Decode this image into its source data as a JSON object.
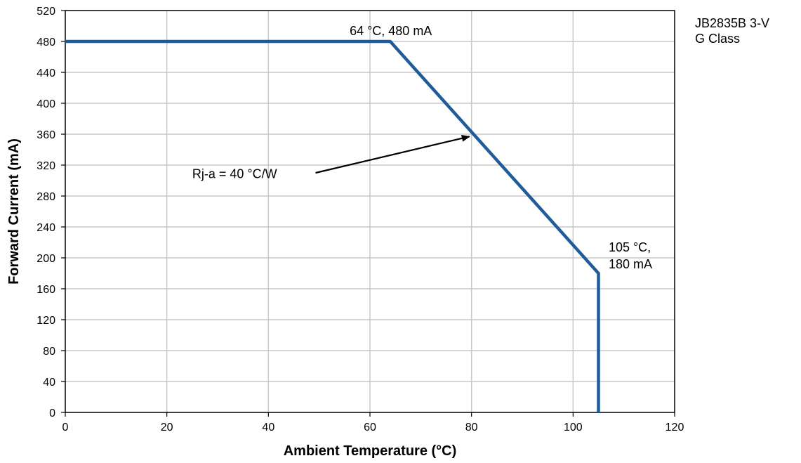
{
  "chart_data": {
    "type": "line",
    "title": "",
    "xlabel": "Ambient Temperature (°C)",
    "ylabel": "Forward Current (mA)",
    "xlim": [
      0,
      120
    ],
    "ylim": [
      0,
      520
    ],
    "x_ticks": [
      0,
      20,
      40,
      60,
      80,
      100,
      120
    ],
    "y_ticks": [
      0,
      40,
      80,
      120,
      160,
      200,
      240,
      280,
      320,
      360,
      400,
      440,
      480,
      520
    ],
    "grid": true,
    "line_color": "#1f5c99",
    "series": [
      {
        "x": [
          0,
          64,
          105,
          105
        ],
        "y": [
          480,
          480,
          180,
          0
        ]
      }
    ],
    "annotations": [
      {
        "text": "64 °C,  480 mA",
        "x": 56,
        "y": 488
      },
      {
        "lines": [
          "105 °C,",
          "180 mA"
        ],
        "x": 107,
        "y": 208
      },
      {
        "text": "Rj-a = 40 °C/W",
        "x": 25,
        "y": 303,
        "arrow_from": [
          49.3,
          310
        ],
        "arrow_to": [
          79.6,
          357
        ]
      }
    ]
  },
  "legend": {
    "line1": "JB2835B 3-V",
    "line2": "G Class"
  }
}
